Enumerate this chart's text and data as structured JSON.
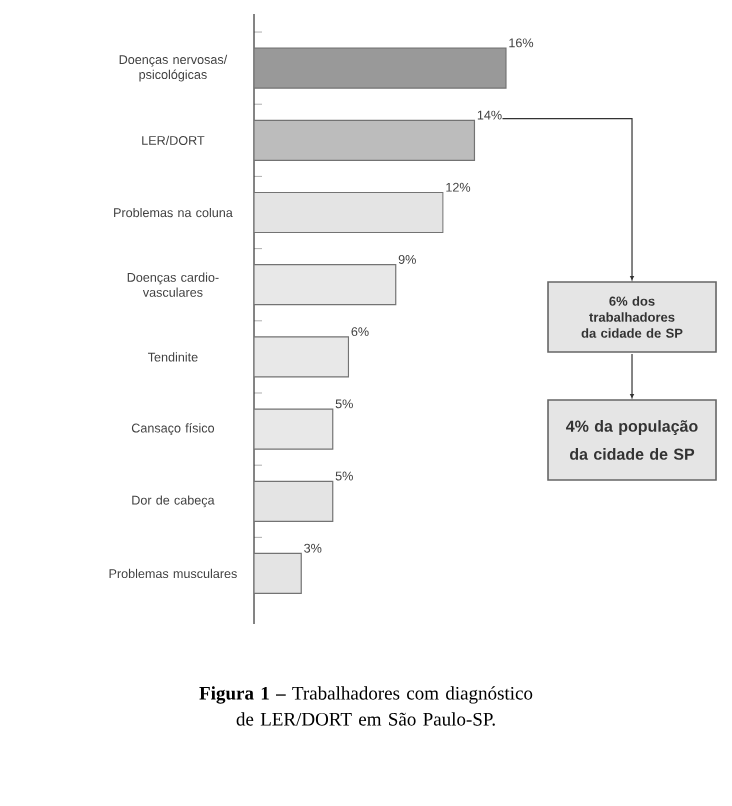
{
  "chart_data": {
    "type": "bar",
    "title": "**Figura 1 –** Trabalhadores com diagnóstico de LER/DORT em São Paulo-SP.",
    "categories": [
      "Doenças nervosas/ psicológicas",
      "LER/DORT",
      "Problemas na coluna",
      "Doenças cardio-vasculares",
      "Tendinite",
      "Cansaço físico",
      "Dor de cabeça",
      "Problemas musculares"
    ],
    "values": [
      16,
      14,
      12,
      9,
      6,
      5,
      5,
      3
    ],
    "value_labels": [
      "16%",
      "14%",
      "12%",
      "9%",
      "6%",
      "5%",
      "5%",
      "3%"
    ],
    "colors": [
      "#999999",
      "#bcbcbc",
      "#e4e4e4",
      "#e8e8e8",
      "#e8e8e8",
      "#e8e8e8",
      "#e4e4e4",
      "#e4e4e4"
    ],
    "annotations": [
      "6% dos trabalhadores da cidade de SP",
      "4% da população da cidade de SP"
    ],
    "orientation": "horizontal"
  }
}
